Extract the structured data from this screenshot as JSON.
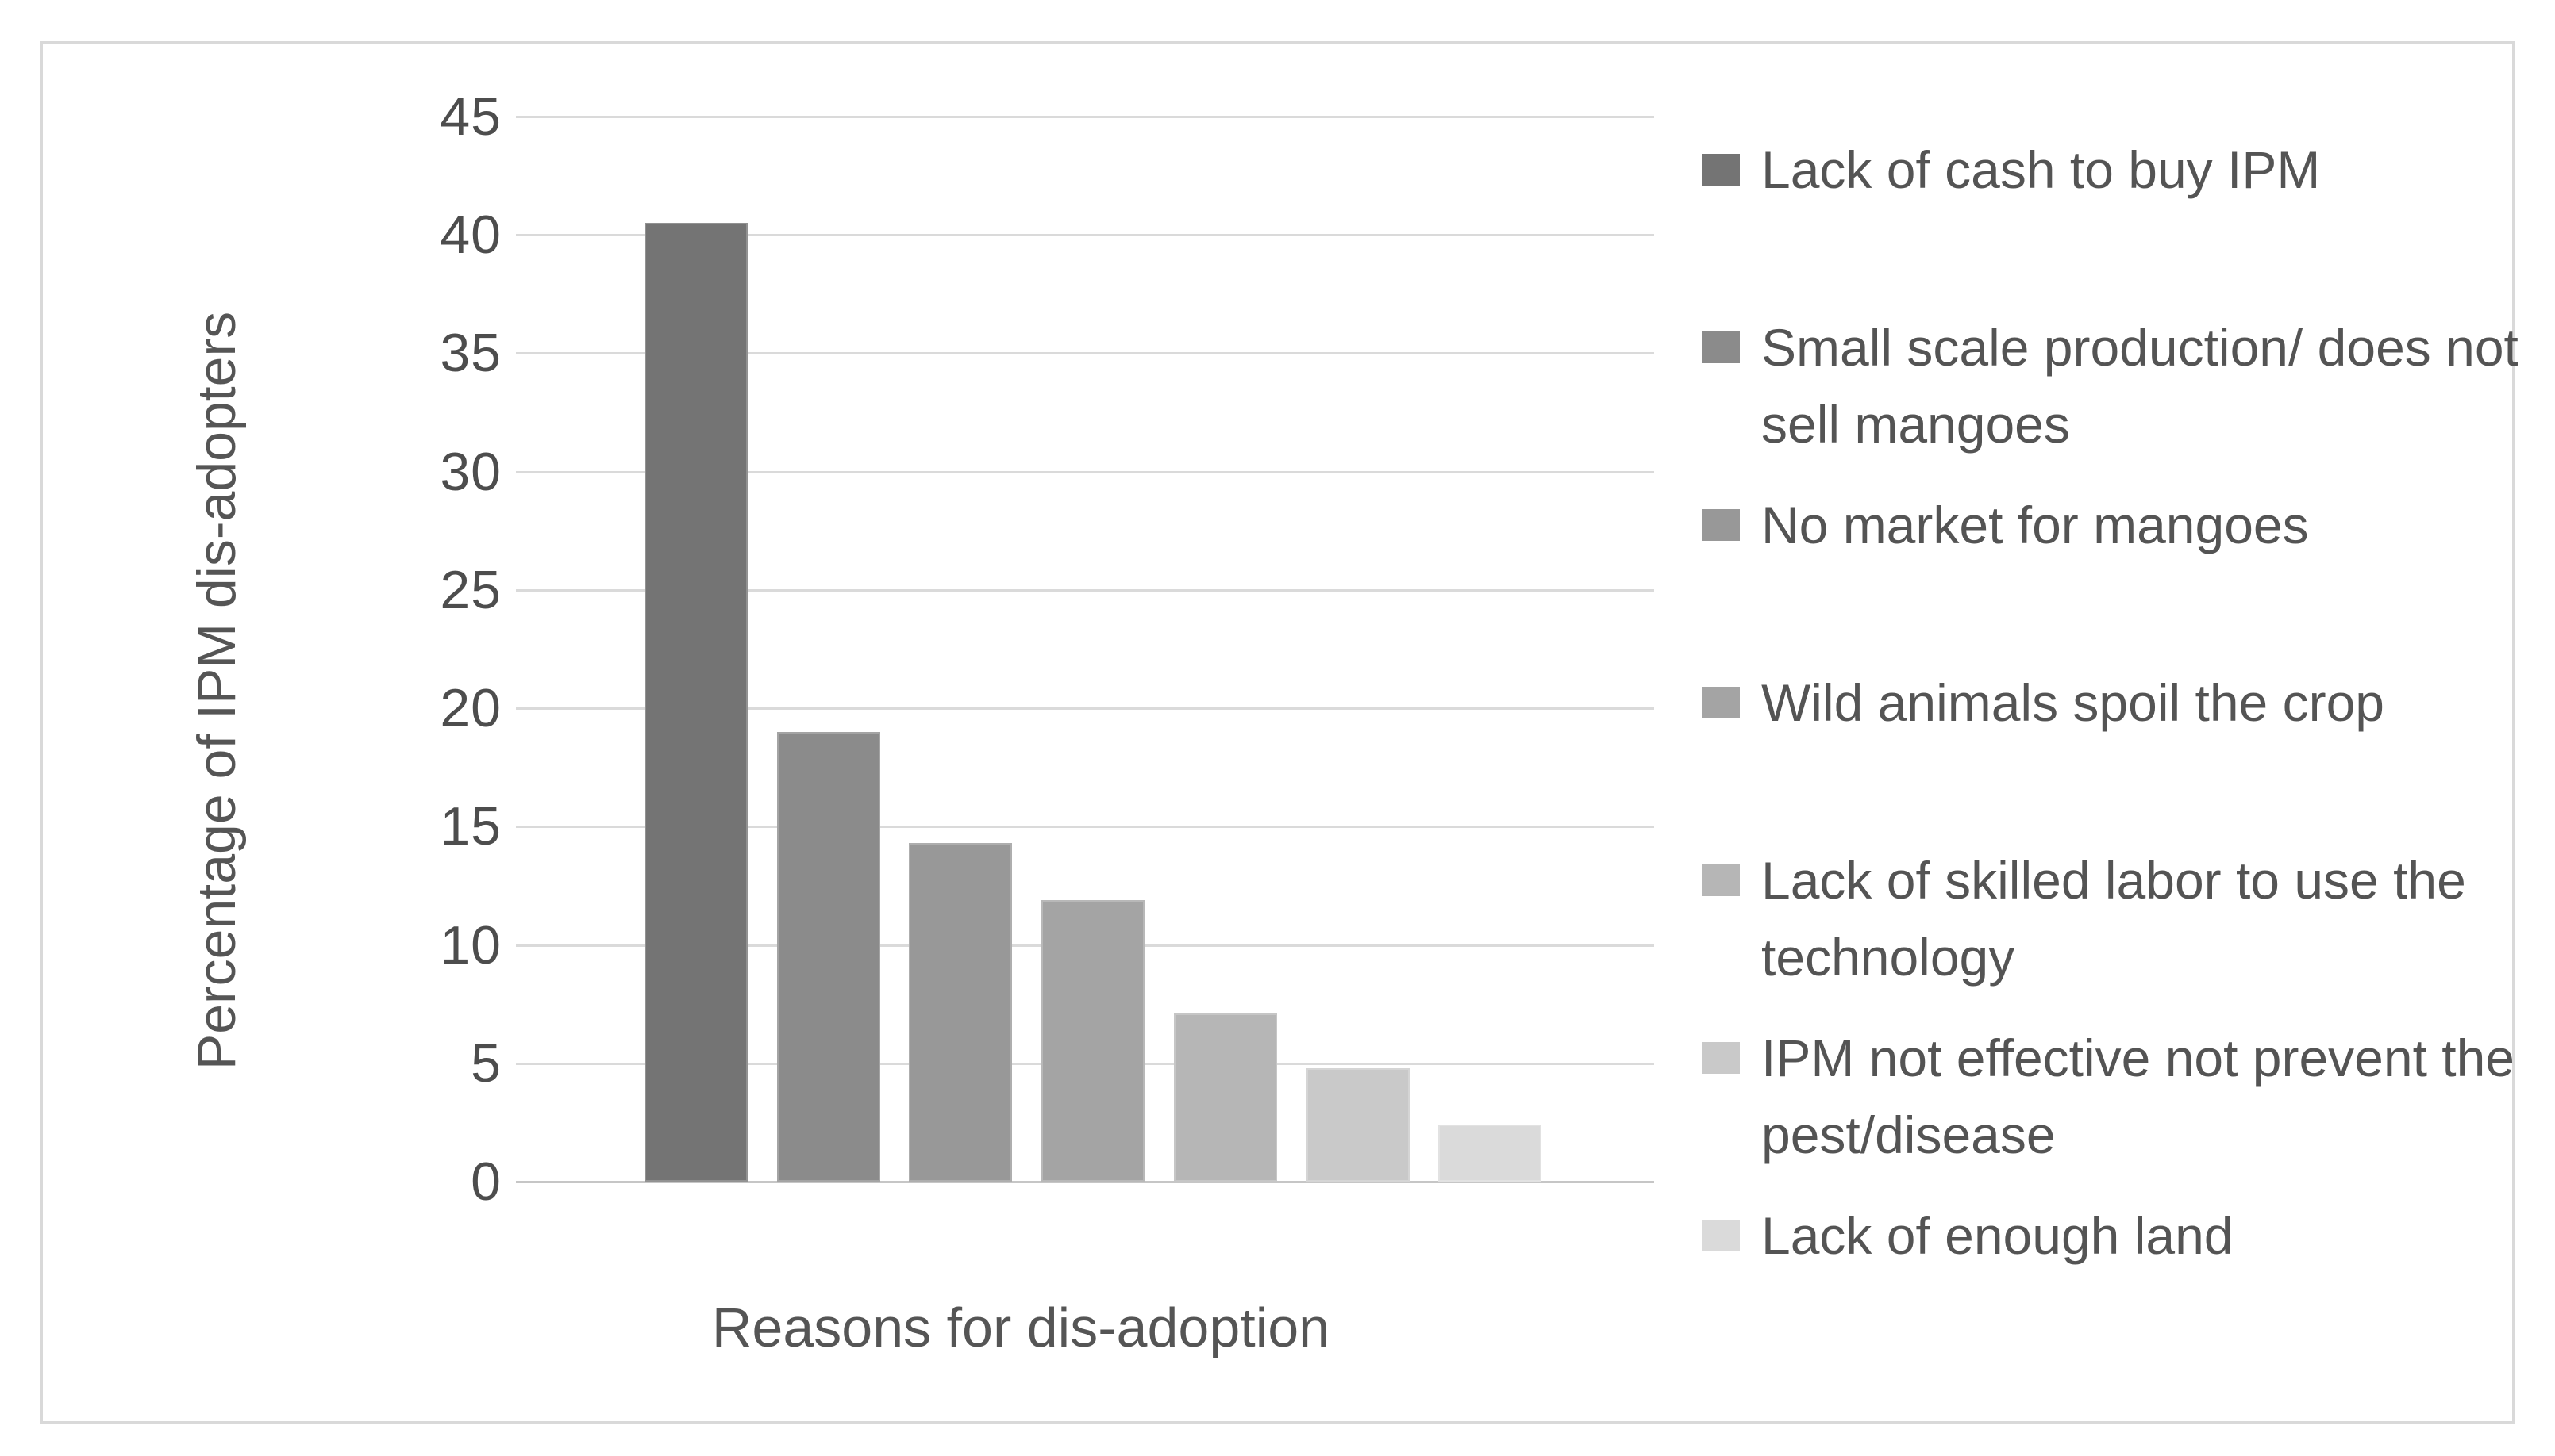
{
  "frame": {
    "border_color": "#d9d9d9",
    "background": "#ffffff"
  },
  "chart_data": {
    "type": "bar",
    "title": "",
    "xlabel": "Reasons for dis-adoption",
    "ylabel": "Percentage of IPM dis-adopters",
    "ylim": [
      0,
      45
    ],
    "ytick_interval": 5,
    "yticks": [
      45,
      40,
      35,
      30,
      25,
      20,
      15,
      10,
      5,
      0
    ],
    "grid": true,
    "legend_position": "right",
    "categories": [
      "Lack of cash to buy IPM",
      "Small scale production/ does not sell mangoes",
      "No market for mangoes",
      "Wild animals spoil the crop",
      "Lack of skilled labor to use the technology",
      "IPM not effective not prevent the pest/disease",
      "Lack of enough land"
    ],
    "values": [
      40.5,
      19,
      14.3,
      11.9,
      7.1,
      4.8,
      2.4
    ],
    "bar_colors": [
      "#747474",
      "#8b8b8b",
      "#989898",
      "#a4a4a4",
      "#b6b6b6",
      "#c9c9c9",
      "#dadada"
    ],
    "gridline_color": "#dadada",
    "axisline_color": "#c6c6c6",
    "tick_text_color": "#4d4d4d",
    "axis_title_color": "#555555",
    "legend_text_color": "#545454"
  }
}
